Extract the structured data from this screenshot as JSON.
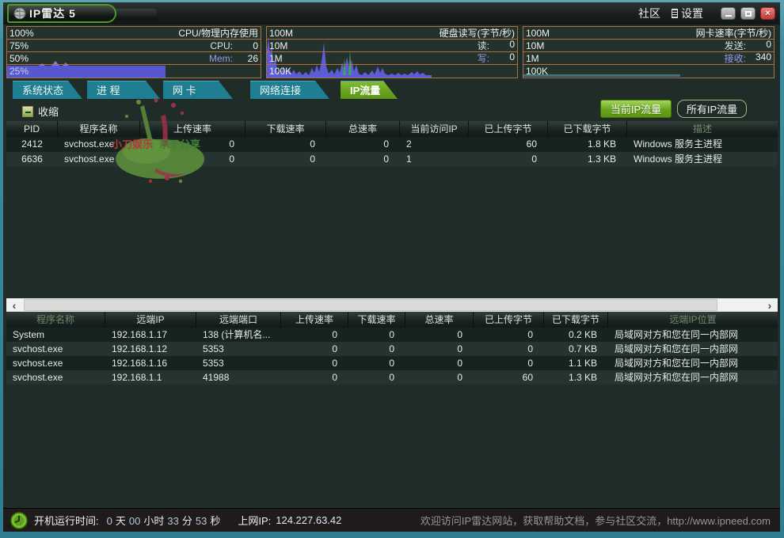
{
  "colors": {
    "frame_teal": "#3e8ca0",
    "panel_border_orange": "#a8714a",
    "graph_purple": "#5c5cd8",
    "graph_green_spike": "#3faa50",
    "net_line_blue": "#3d6e93",
    "tab_teal": "#1f7e91",
    "tab_active_green": "#68a41e",
    "button_green": "#68a41e",
    "close_red": "#c33c3c",
    "dim_header_text": "#72886f"
  },
  "icons": {
    "settings": "settings-list",
    "minimize": "–",
    "maximize": "□",
    "close": "×",
    "scroll_left": "‹",
    "scroll_right": "›",
    "collapse": "−",
    "clock": "clock"
  },
  "title_bar": {
    "app_name": "IP雷达 5",
    "community": "社区",
    "settings": "设置"
  },
  "panels": [
    {
      "title": "CPU/物理内存使用",
      "scale": [
        "100%",
        "75%",
        "50%",
        "25%"
      ],
      "metrics": [
        {
          "label": "CPU:",
          "value": "0"
        },
        {
          "label": "Mem:",
          "value": "26"
        }
      ]
    },
    {
      "title": "硬盘读写(字节/秒)",
      "scale": [
        "100M",
        "10M",
        "1M",
        "100K"
      ],
      "metrics": [
        {
          "label": "读:",
          "value": "0"
        },
        {
          "label": "写:",
          "value": "0"
        }
      ]
    },
    {
      "title": "网卡速率(字节/秒)",
      "scale": [
        "100M",
        "10M",
        "1M",
        "100K"
      ],
      "metrics": [
        {
          "label": "发送:",
          "value": "0"
        },
        {
          "label": "接收:",
          "value": "340"
        }
      ]
    }
  ],
  "tabs": [
    {
      "label": "系统状态",
      "active": false
    },
    {
      "label": "进 程",
      "active": false
    },
    {
      "label": "网 卡",
      "active": false
    },
    {
      "label": "网络连接",
      "active": false
    },
    {
      "label": "IP流量",
      "active": true
    }
  ],
  "toolbar": {
    "collapse_label": "收缩",
    "current_ip_button": "当前IP流量",
    "all_ip_button": "所有IP流量"
  },
  "watermark": {
    "text1": "小刀娱乐",
    "text2": "乐于分享"
  },
  "table_top": {
    "columns": [
      {
        "label": "PID",
        "dim": false
      },
      {
        "label": "程序名称",
        "dim": false
      },
      {
        "label": "上传速率",
        "dim": false
      },
      {
        "label": "下载速率",
        "dim": false
      },
      {
        "label": "总速率",
        "dim": false
      },
      {
        "label": "当前访问IP",
        "dim": false
      },
      {
        "label": "已上传字节",
        "dim": false
      },
      {
        "label": "已下载字节",
        "dim": false
      },
      {
        "label": "描述",
        "dim": true
      }
    ],
    "rows": [
      [
        "2412",
        "svchost.exe",
        "0",
        "0",
        "0",
        "2",
        "60",
        "1.8 KB",
        "Windows 服务主进程"
      ],
      [
        "6636",
        "svchost.exe",
        "0",
        "0",
        "0",
        "1",
        "0",
        "1.3 KB",
        "Windows 服务主进程"
      ]
    ]
  },
  "table_bottom": {
    "columns": [
      {
        "label": "程序名称",
        "dim": true
      },
      {
        "label": "远端IP",
        "dim": false
      },
      {
        "label": "远端端口",
        "dim": false
      },
      {
        "label": "上传速率",
        "dim": false
      },
      {
        "label": "下载速率",
        "dim": false
      },
      {
        "label": "总速率",
        "dim": false
      },
      {
        "label": "已上传字节",
        "dim": false
      },
      {
        "label": "已下载字节",
        "dim": false
      },
      {
        "label": "远端IP位置",
        "dim": true
      }
    ],
    "rows": [
      [
        "System",
        "192.168.1.17",
        "138 (计算机名...",
        "0",
        "0",
        "0",
        "0",
        "0.2 KB",
        "局域网对方和您在同一内部网"
      ],
      [
        "svchost.exe",
        "192.168.1.12",
        "5353",
        "0",
        "0",
        "0",
        "0",
        "0.7 KB",
        "局域网对方和您在同一内部网"
      ],
      [
        "svchost.exe",
        "192.168.1.16",
        "5353",
        "0",
        "0",
        "0",
        "0",
        "1.1 KB",
        "局域网对方和您在同一内部网"
      ],
      [
        "svchost.exe",
        "192.168.1.1",
        "41988",
        "0",
        "0",
        "0",
        "60",
        "1.3 KB",
        "局域网对方和您在同一内部网"
      ]
    ]
  },
  "status_bar": {
    "uptime_label": "开机运行时间:",
    "uptime": [
      {
        "n": "0",
        "u": "天"
      },
      {
        "n": "00",
        "u": "小时"
      },
      {
        "n": "33",
        "u": "分"
      },
      {
        "n": "53",
        "u": "秒"
      }
    ],
    "ip_label": "上网IP:",
    "ip_value": "124.227.63.42",
    "promo": "欢迎访问IP雷达网站，获取帮助文档，参与社区交流，http://www.ipneed.com"
  }
}
